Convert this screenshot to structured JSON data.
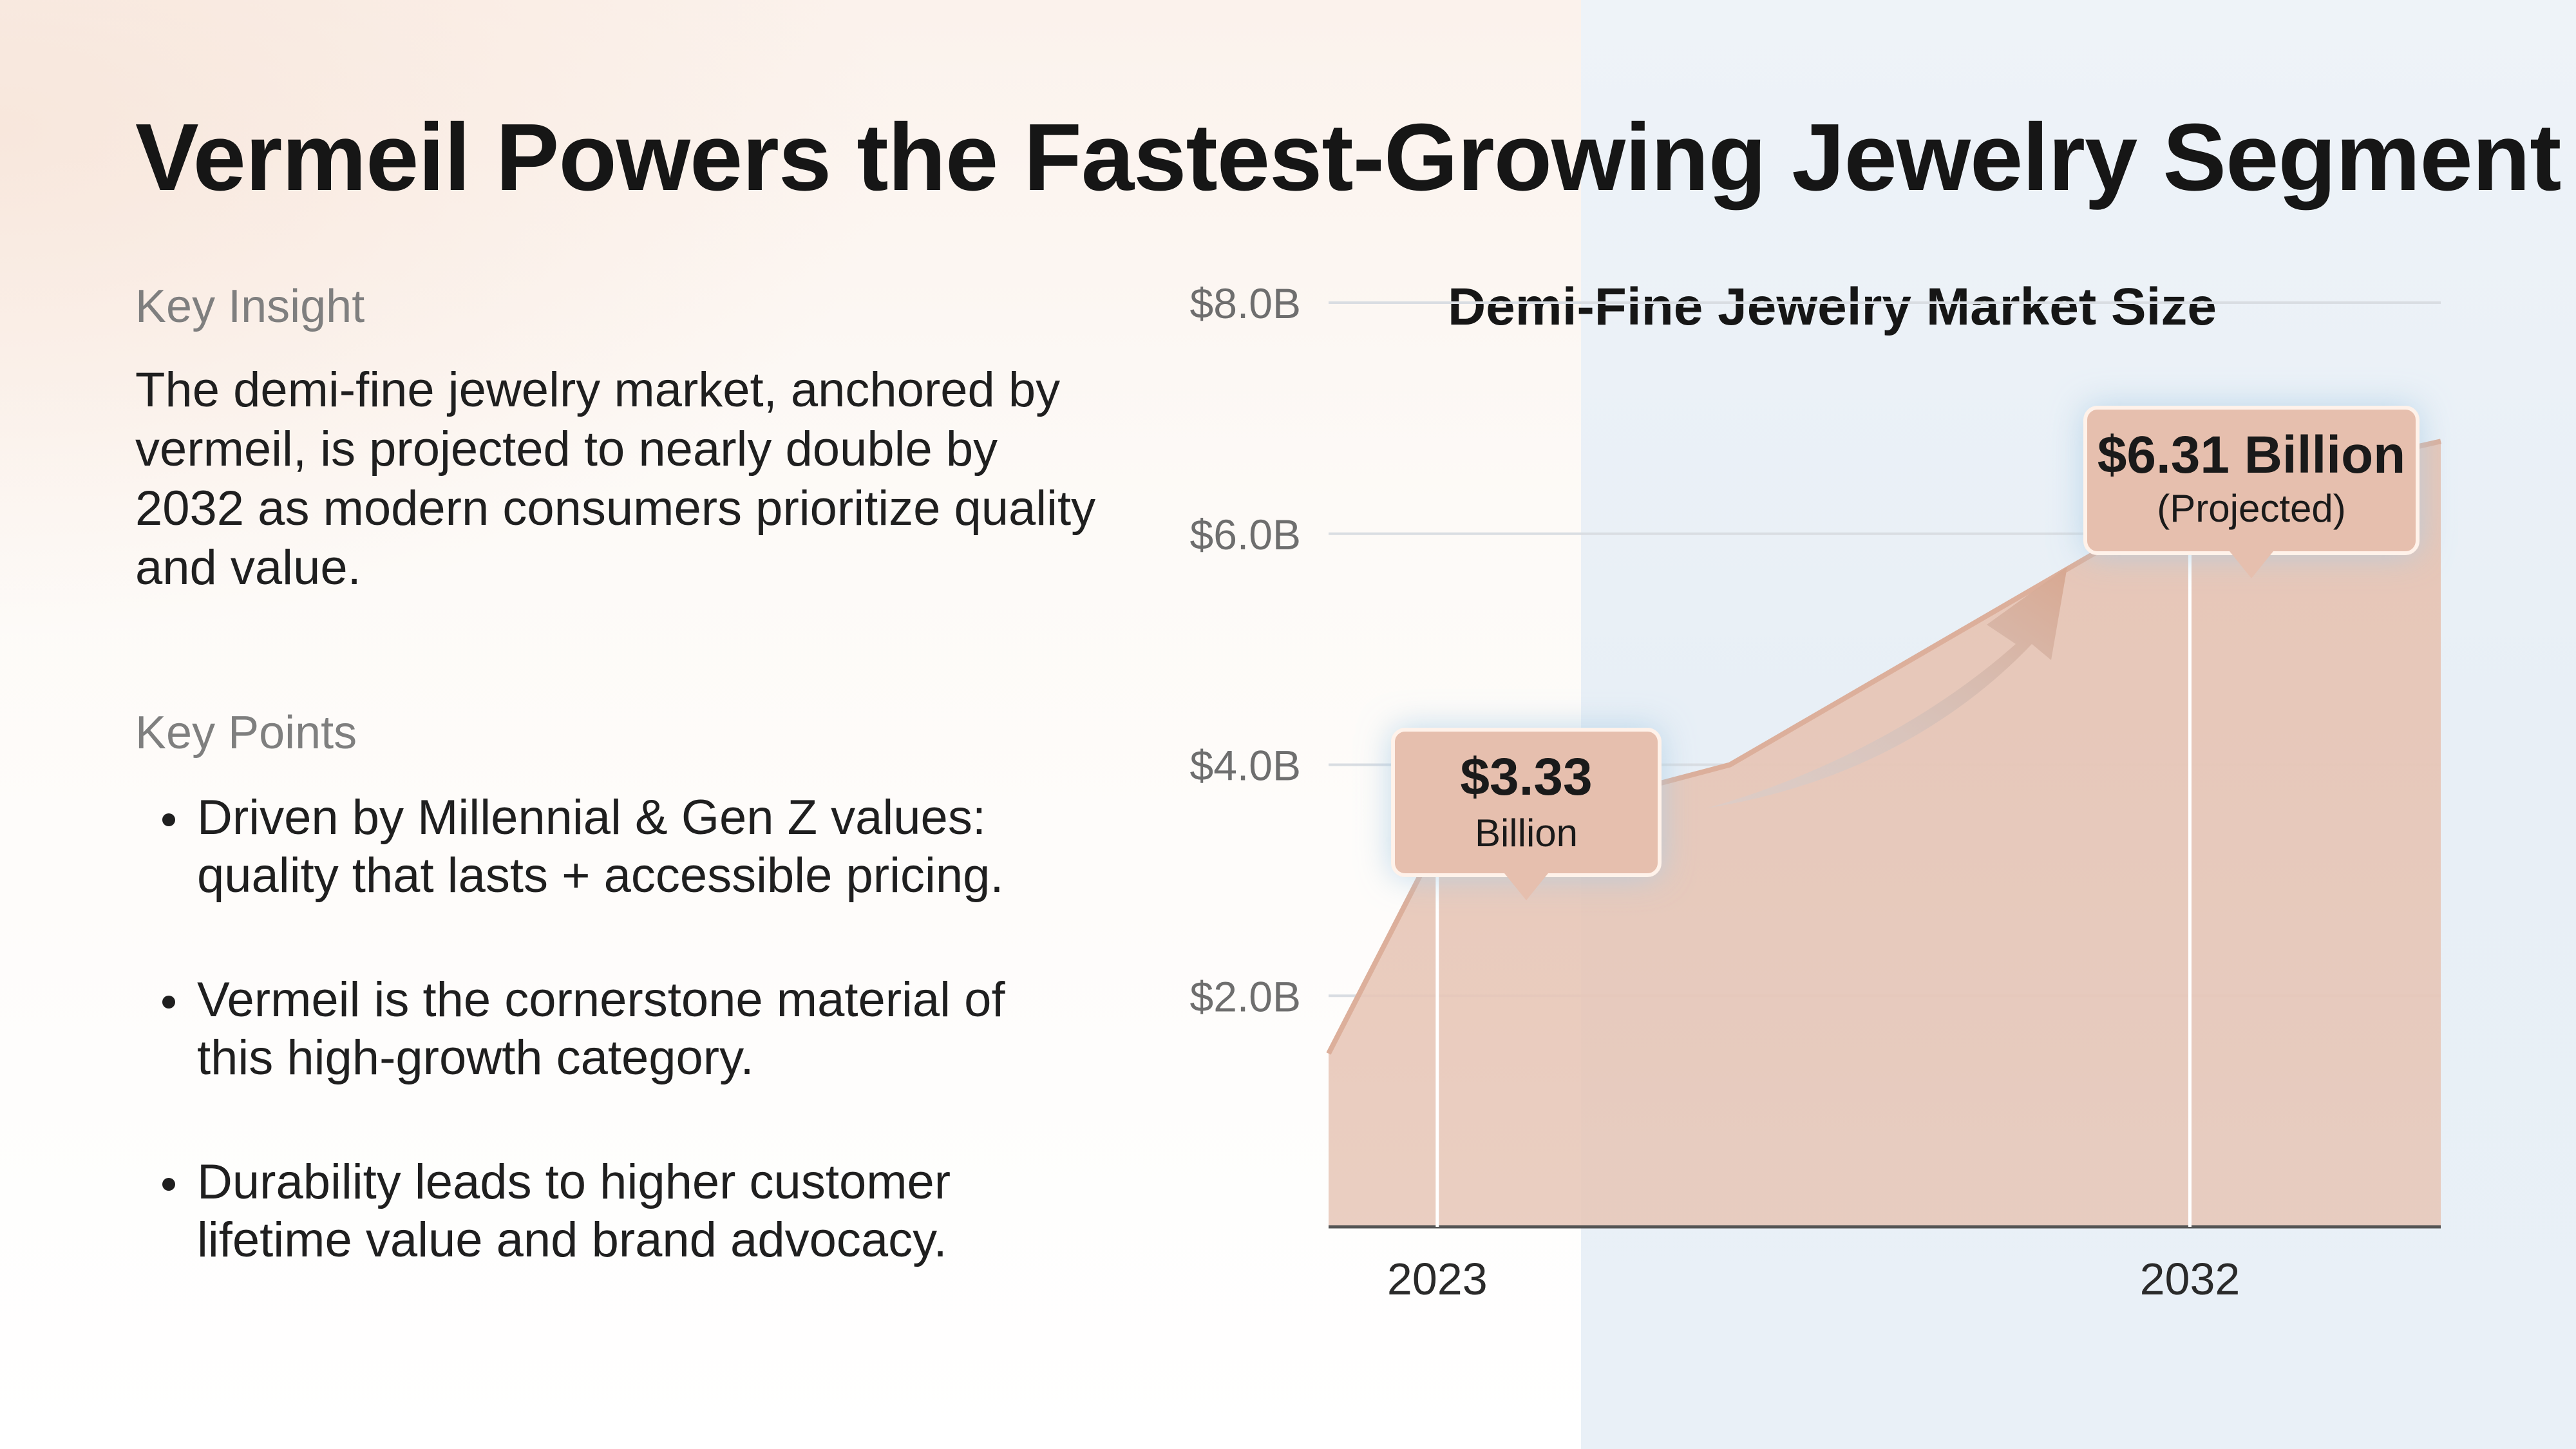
{
  "title": "Vermeil Powers the Fastest-Growing Jewelry Segment",
  "insight": {
    "label": "Key Insight",
    "text": "The demi-fine jewelry market, anchored by vermeil, is projected to nearly double by 2032 as modern consumers prioritize quality and value."
  },
  "points": {
    "label": "Key Points",
    "items": [
      "Driven by Millennial & Gen Z values: quality that lasts + accessible pricing.",
      "Vermeil is the cornerstone material of this high-growth category.",
      "Durability leads to higher customer lifetime value and brand advocacy."
    ]
  },
  "chart_data": {
    "type": "area",
    "title": "Demi-Fine Jewelry Market Size",
    "xlabel": "",
    "ylabel": "",
    "x": [
      2021.7,
      2023,
      2026.5,
      2032,
      2035
    ],
    "values": [
      1.5,
      3.33,
      4.0,
      6.31,
      6.8
    ],
    "ylim": [
      0,
      8
    ],
    "y_ticks": [
      2,
      4,
      6,
      8
    ],
    "y_tick_labels": [
      "$2.0B",
      "$4.0B",
      "$6.0B",
      "$8.0B"
    ],
    "x_tick_labels": [
      {
        "x": 2023,
        "label": "2023"
      },
      {
        "x": 2032,
        "label": "2032"
      }
    ],
    "grid": true,
    "annotations": [
      {
        "x": 2023,
        "y": 3.33,
        "value": "$3.33",
        "note": "Billion"
      },
      {
        "x": 2032,
        "y": 6.31,
        "value": "$6.31 Billion",
        "note": "(Projected)"
      }
    ],
    "colors": {
      "fill": "#e7c6b7",
      "line": "#dcaf9b",
      "grid": "#d9dde2",
      "arrow": "#d8a891"
    }
  }
}
